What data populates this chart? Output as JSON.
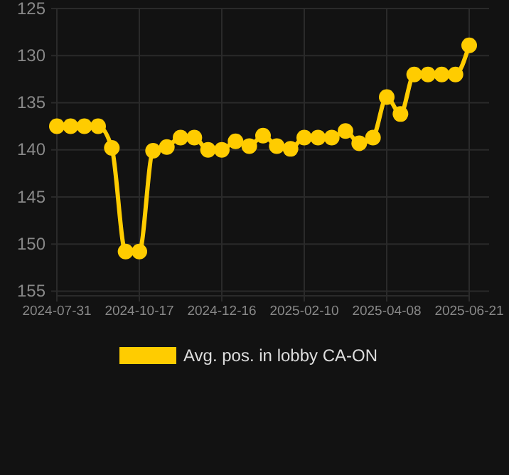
{
  "chart_data": {
    "type": "line",
    "categories": [
      "2024-07-31",
      null,
      null,
      null,
      null,
      null,
      "2024-10-17",
      null,
      null,
      null,
      null,
      null,
      "2024-12-16",
      null,
      null,
      null,
      null,
      null,
      "2025-02-10",
      null,
      null,
      null,
      null,
      null,
      "2025-04-08",
      null,
      null,
      null,
      null,
      null,
      "2025-06-21"
    ],
    "series": [
      {
        "name": "Avg. pos. in lobby CA-ON",
        "color": "#ffcc00",
        "values": [
          137.5,
          137.5,
          137.5,
          137.5,
          139.8,
          150.8,
          150.8,
          140.1,
          139.7,
          138.7,
          138.7,
          140,
          140,
          139.1,
          139.6,
          138.5,
          139.6,
          139.9,
          138.7,
          138.7,
          138.7,
          138,
          139.3,
          138.7,
          134.4,
          136.2,
          132,
          132,
          132,
          132,
          128.9
        ]
      }
    ],
    "ylim": [
      155.5,
      125
    ],
    "yticks": [
      125,
      130,
      135,
      140,
      145,
      150,
      155
    ],
    "grid": true,
    "legend": "bottom",
    "marker": "circle",
    "line_style": "solid"
  }
}
